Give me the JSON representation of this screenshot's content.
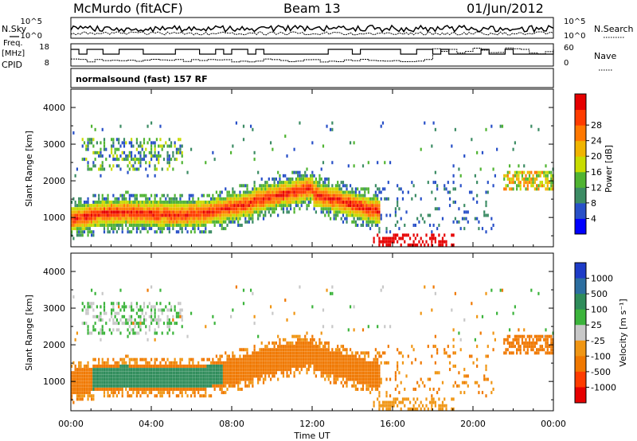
{
  "header": {
    "station": "McMurdo (fitACF)",
    "beam": "Beam 13",
    "date": "01/Jun/2012"
  },
  "summary_panels": {
    "left_labels": {
      "nsky": "N.Sky",
      "freq": "Freq.",
      "freq_unit": "[MHz]",
      "cpid": "CPID"
    },
    "right_labels": {
      "nsearch": "N.Search",
      "nave": "Nave"
    },
    "noise_axis_ticks": [
      "10^5",
      "10^0"
    ],
    "freq_axis_ticks": [
      "18",
      "8"
    ],
    "nave_axis_ticks": [
      "60",
      "0"
    ],
    "cpid_text": "normalsound (fast) 157 RF"
  },
  "axes": {
    "xlabel": "Time UT",
    "ylabel": "Slant Range [km]",
    "x_ticks": [
      "00:00",
      "04:00",
      "08:00",
      "12:00",
      "16:00",
      "20:00",
      "00:00"
    ],
    "y_ticks": [
      "1000",
      "2000",
      "3000",
      "4000"
    ]
  },
  "colorbars": {
    "power": {
      "label": "Power [dB]",
      "ticks": [
        "4",
        "8",
        "12",
        "16",
        "20",
        "24",
        "28"
      ],
      "colors": [
        "#0000ff",
        "#2850c8",
        "#3c8c64",
        "#50b432",
        "#c8dc00",
        "#f0b400",
        "#ff7800",
        "#ff3c00",
        "#e60000"
      ]
    },
    "velocity": {
      "label": "Velocity [m s⁻¹]",
      "ticks": [
        "1000",
        "500",
        "100",
        "25",
        "-25",
        "-100",
        "-500",
        "-1000"
      ],
      "colors": [
        "#1e3cc8",
        "#2c6ea0",
        "#2e8c5a",
        "#3cb43c",
        "#c8c8c8",
        "#f09614",
        "#f07800",
        "#ff3c00",
        "#e60000"
      ]
    }
  },
  "chart_data": [
    {
      "type": "heatmap",
      "title": "Power",
      "xlabel": "Time UT",
      "ylabel": "Slant Range [km]",
      "xlim": [
        0,
        24
      ],
      "ylim": [
        200,
        4500
      ],
      "color_label": "Power [dB]",
      "color_ticks": [
        4,
        8,
        12,
        16,
        20,
        24,
        28
      ],
      "features": [
        {
          "name": "main_band",
          "time_range": [
            0,
            15.3
          ],
          "range_km": [
            600,
            1600
          ],
          "power_db_peak": 28
        },
        {
          "name": "upper_patch",
          "time_range": [
            0.5,
            5
          ],
          "range_km": [
            2000,
            3000
          ],
          "power_db_peak": 16
        },
        {
          "name": "late_patch",
          "time_range": [
            21.5,
            24
          ],
          "range_km": [
            1700,
            2200
          ],
          "power_db_peak": 20
        },
        {
          "name": "ground_scatter",
          "time_range": [
            15,
            19
          ],
          "range_km": [
            300,
            500
          ],
          "power_db_peak": 28
        }
      ]
    },
    {
      "type": "heatmap",
      "title": "Velocity",
      "xlabel": "Time UT",
      "ylabel": "Slant Range [km]",
      "xlim": [
        0,
        24
      ],
      "ylim": [
        200,
        4500
      ],
      "color_label": "Velocity [m s⁻¹]",
      "color_ticks": [
        1000,
        500,
        100,
        25,
        -25,
        -100,
        -500,
        -1000
      ],
      "features": [
        {
          "name": "main_band_green",
          "time_range": [
            1,
            7.5
          ],
          "range_km": [
            700,
            1400
          ],
          "velocity": 100
        },
        {
          "name": "main_band_orange",
          "time_range": [
            0,
            15.3
          ],
          "range_km": [
            600,
            2200
          ],
          "velocity": -100
        },
        {
          "name": "upper_patch",
          "time_range": [
            0.5,
            5.5
          ],
          "range_km": [
            2300,
            3000
          ],
          "velocity": -25
        },
        {
          "name": "late_patch",
          "time_range": [
            20,
            24
          ],
          "range_km": [
            1700,
            2200
          ],
          "velocity": -100
        }
      ]
    }
  ]
}
